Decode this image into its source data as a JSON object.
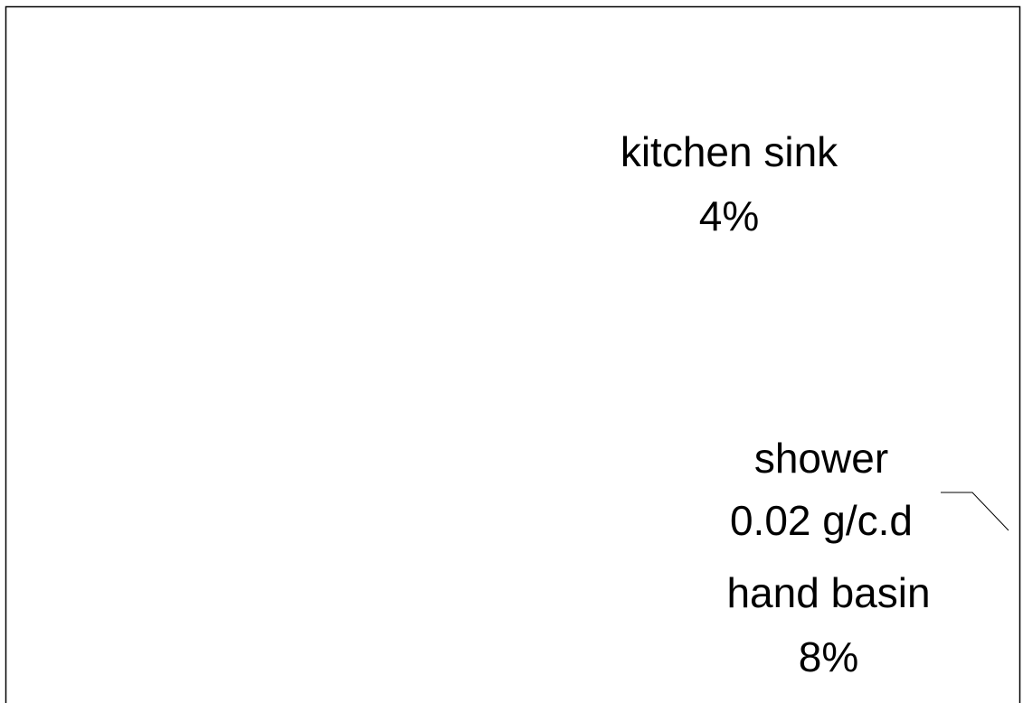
{
  "labels": [
    {
      "name": "kitchen sink",
      "value": "4%"
    },
    {
      "name": "shower",
      "value": "0.02 g/c.d"
    },
    {
      "name": "hand basin",
      "value": "8%"
    }
  ]
}
